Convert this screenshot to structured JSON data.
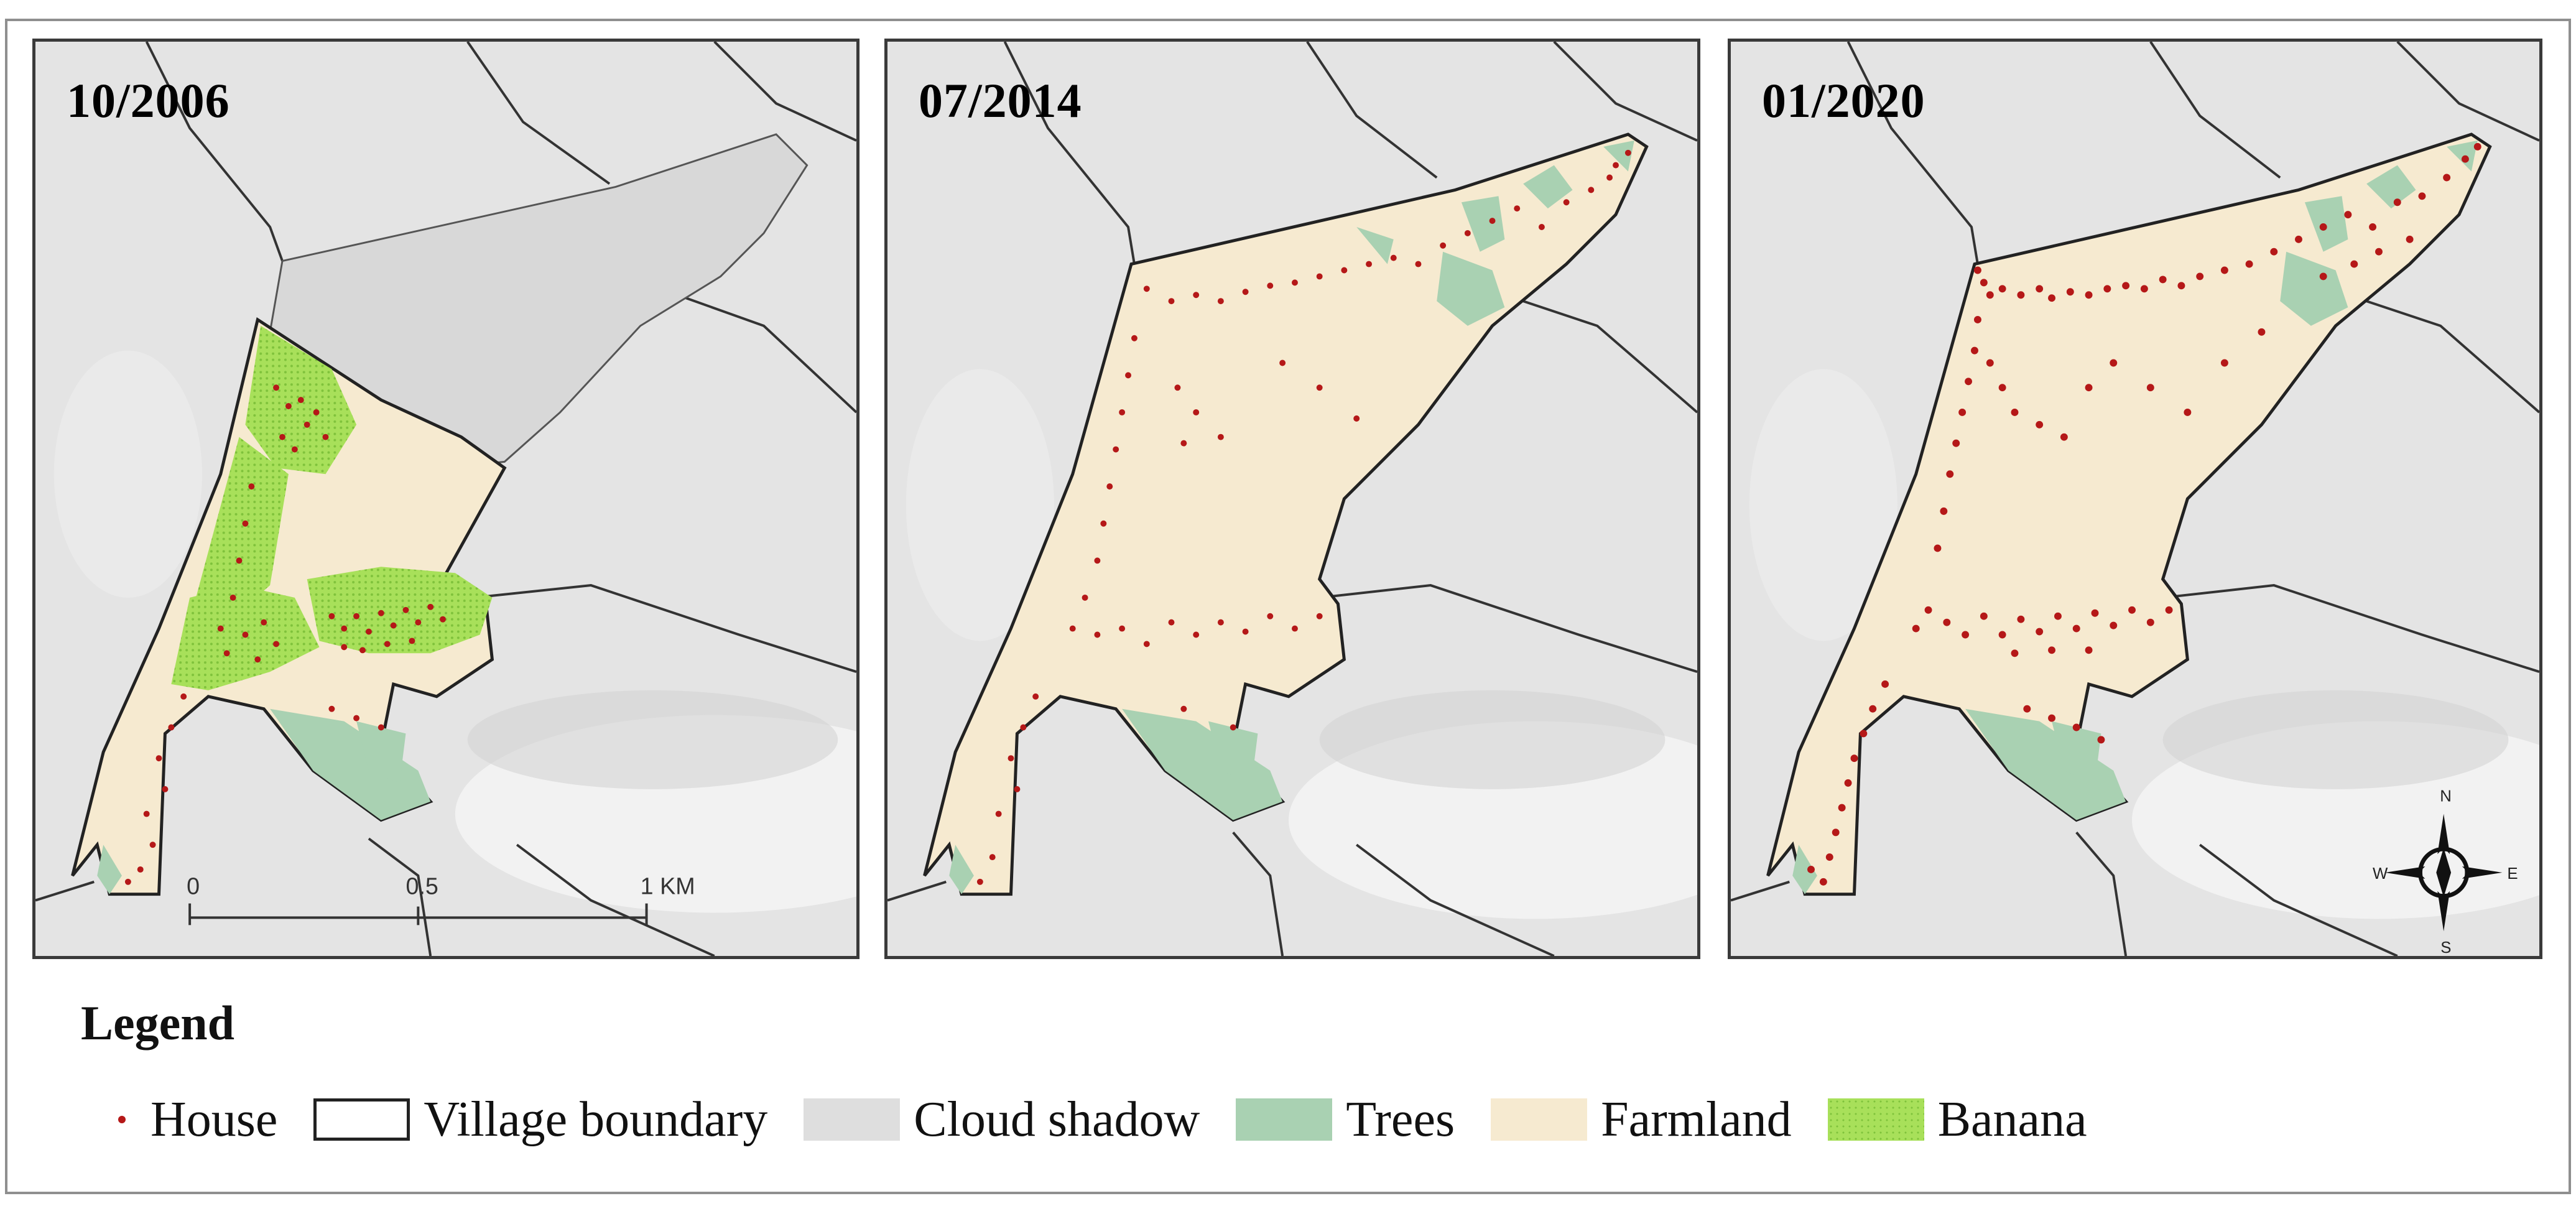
{
  "panels": [
    {
      "date": "10/2006"
    },
    {
      "date": "07/2014"
    },
    {
      "date": "01/2020"
    }
  ],
  "scale_bar": {
    "labels": [
      "0",
      "0.5",
      "1 KM"
    ]
  },
  "compass": {
    "north": "N",
    "south": "S",
    "west": "W",
    "east": "E"
  },
  "legend": {
    "title": "Legend",
    "items": [
      {
        "label": "House",
        "swatch": "house-dot",
        "color": "#b51818"
      },
      {
        "label": "Village boundary",
        "swatch": "outline",
        "color": "#222222"
      },
      {
        "label": "Cloud shadow",
        "swatch": "fill",
        "color": "#dedede"
      },
      {
        "label": "Trees",
        "swatch": "fill",
        "color": "#a9d1b2"
      },
      {
        "label": "Farmland",
        "swatch": "fill",
        "color": "#f6ead0"
      },
      {
        "label": "Banana",
        "swatch": "fill",
        "color": "#a8e05a"
      }
    ]
  },
  "colors": {
    "background_terrain": "#e4e4e4",
    "village_boundary": "#222222",
    "house": "#b51818"
  }
}
